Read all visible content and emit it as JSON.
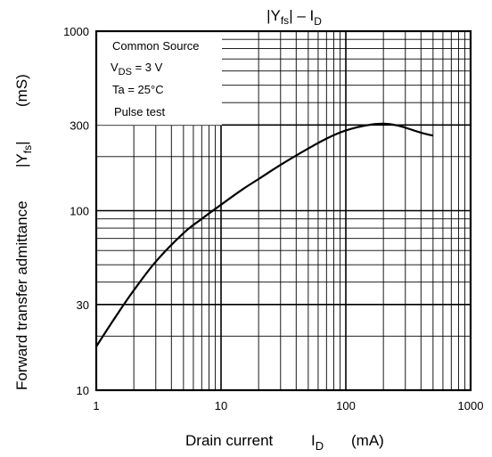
{
  "chart_data": {
    "type": "line",
    "title": "|Yfs| – ID",
    "title_parts": {
      "pre": "|Y",
      "fs": "fs",
      "mid": "| – I",
      "d": "D"
    },
    "xlabel": "Drain current",
    "xlabel_symbol": "I",
    "xlabel_sub": "D",
    "xlabel_unit": "(mA)",
    "ylabel": "Forward transfer admittance",
    "ylabel_symbol_pre": "|Y",
    "ylabel_symbol_sub": "fs",
    "ylabel_symbol_post": "|",
    "ylabel_unit": "(mS)",
    "xscale": "log",
    "yscale": "log",
    "xlim": [
      1,
      1000
    ],
    "ylim": [
      10,
      1000
    ],
    "x_ticks": [
      {
        "value": 1,
        "label": "1"
      },
      {
        "value": 10,
        "label": "10"
      },
      {
        "value": 100,
        "label": "100"
      },
      {
        "value": 1000,
        "label": "1000"
      }
    ],
    "y_ticks": [
      {
        "value": 10,
        "label": "10"
      },
      {
        "value": 30,
        "label": "30"
      },
      {
        "value": 100,
        "label": "100"
      },
      {
        "value": 300,
        "label": "300"
      },
      {
        "value": 1000,
        "label": "1000"
      }
    ],
    "grid": true,
    "conditions": {
      "line1": "Common Source",
      "vds_symbol": "V",
      "vds_sub": "DS",
      "vds_value": " = 3 V",
      "ta": "Ta = 25°C",
      "pulse": "Pulse test"
    },
    "series": [
      {
        "x": [
          1,
          1.5,
          2,
          3,
          5,
          7,
          10,
          15,
          20,
          30,
          50,
          70,
          100,
          150,
          200,
          250,
          300,
          400,
          500
        ],
        "y": [
          17.5,
          27,
          36,
          52,
          75,
          90,
          108,
          132,
          150,
          180,
          222,
          252,
          280,
          300,
          305,
          300,
          290,
          272,
          262
        ]
      }
    ]
  }
}
